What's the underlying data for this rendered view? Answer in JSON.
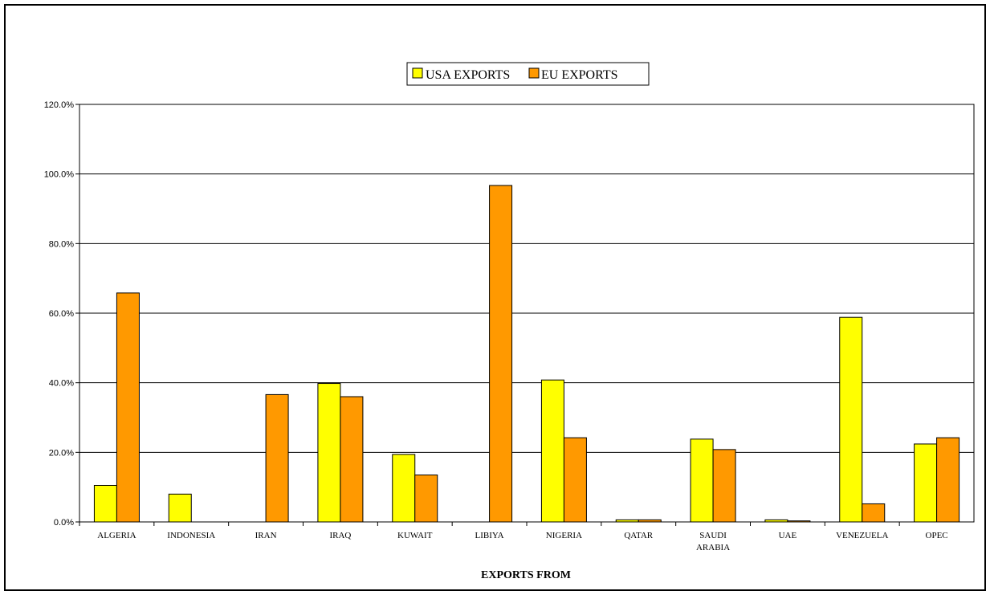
{
  "chart_data": {
    "type": "bar",
    "title": "",
    "xlabel": "EXPORTS FROM",
    "ylabel": "",
    "ylim": [
      0,
      120
    ],
    "yticks": [
      "0.0%",
      "20.0%",
      "40.0%",
      "60.0%",
      "80.0%",
      "100.0%",
      "120.0%"
    ],
    "grid": true,
    "legend_position": "top-center",
    "categories": [
      "ALGERIA",
      "INDONESIA",
      "IRAN",
      "IRAQ",
      "KUWAIT",
      "LIBIYA",
      "NIGERIA",
      "QATAR",
      "SAUDI ARABIA",
      "UAE",
      "VENEZUELA",
      "OPEC"
    ],
    "series": [
      {
        "name": "USA EXPORTS",
        "color": "#FFFF00",
        "values": [
          10.5,
          8.0,
          0.0,
          39.8,
          19.4,
          0.0,
          40.8,
          0.6,
          23.8,
          0.6,
          58.8,
          22.4
        ]
      },
      {
        "name": "EU EXPORTS",
        "color": "#FF9900",
        "values": [
          65.8,
          0.0,
          36.6,
          36.0,
          13.5,
          96.7,
          24.2,
          0.6,
          20.8,
          0.3,
          5.2,
          24.2
        ]
      }
    ]
  }
}
